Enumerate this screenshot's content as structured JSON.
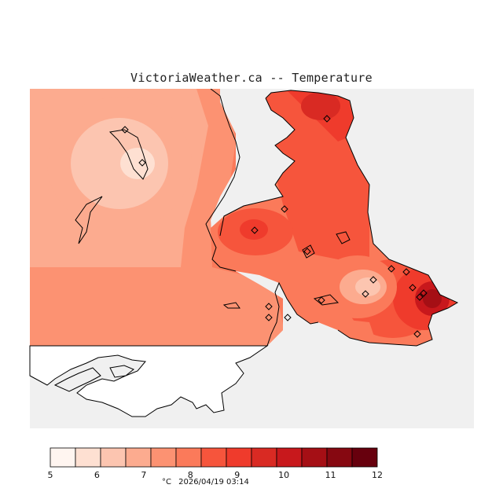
{
  "header": {
    "title": "VictoriaWeather.ca -- Temperature"
  },
  "map": {
    "region_color": "#f0f0f0",
    "land_fill": "#ffffff",
    "coast_color": "#000000",
    "station_marker": "diamond-icon"
  },
  "legend": {
    "bins": [
      "#fff5f0",
      "#fee0d2",
      "#fcc5b0",
      "#fcab8f",
      "#fc9272",
      "#fb7a5a",
      "#f6553c",
      "#ef3b2c",
      "#d92a23",
      "#c8181c",
      "#a50f15",
      "#860811",
      "#67000d"
    ],
    "ticks": [
      "5",
      "6",
      "7",
      "8",
      "9",
      "10",
      "11",
      "12"
    ],
    "tick_values": [
      5,
      6,
      7,
      8,
      9,
      10,
      11,
      12
    ],
    "unit": "°C",
    "timestamp": "2026/04/19 03:14"
  }
}
